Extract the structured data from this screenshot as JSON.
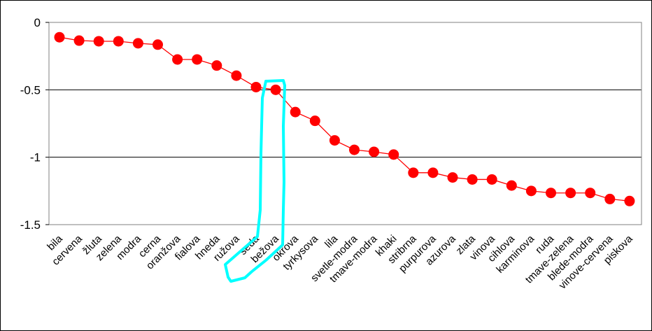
{
  "chart_data": {
    "type": "line",
    "categories": [
      "bila",
      "cervena",
      "žluta",
      "zelena",
      "modra",
      "cerna",
      "oranžova",
      "fialova",
      "hneda",
      "ružova",
      "seda",
      "bežova",
      "okrova",
      "tyrkysova",
      "lila",
      "svetle-modra",
      "tmave-modra",
      "khaki",
      "stribrna",
      "purpurova",
      "azurova",
      "zlata",
      "vinova",
      "cihlova",
      "karminova",
      "ruda",
      "tmave-zelena",
      "blede-modra",
      "vinove-cervena",
      "piskova"
    ],
    "values": [
      -0.11,
      -0.135,
      -0.14,
      -0.14,
      -0.155,
      -0.165,
      -0.275,
      -0.275,
      -0.32,
      -0.395,
      -0.48,
      -0.5,
      -0.665,
      -0.73,
      -0.875,
      -0.945,
      -0.96,
      -0.98,
      -1.115,
      -1.115,
      -1.15,
      -1.165,
      -1.165,
      -1.21,
      -1.25,
      -1.265,
      -1.265,
      -1.265,
      -1.31,
      -1.325
    ],
    "ylim": [
      -1.5,
      0
    ],
    "yticks": [
      0,
      -0.5,
      -1,
      -1.5
    ],
    "ytick_labels": [
      "0",
      "-0.5",
      "-1",
      "-1.5"
    ],
    "grid": true,
    "series_color": "#ff0000",
    "highlight_color": "#00ffff",
    "highlight_category": "bežova"
  }
}
